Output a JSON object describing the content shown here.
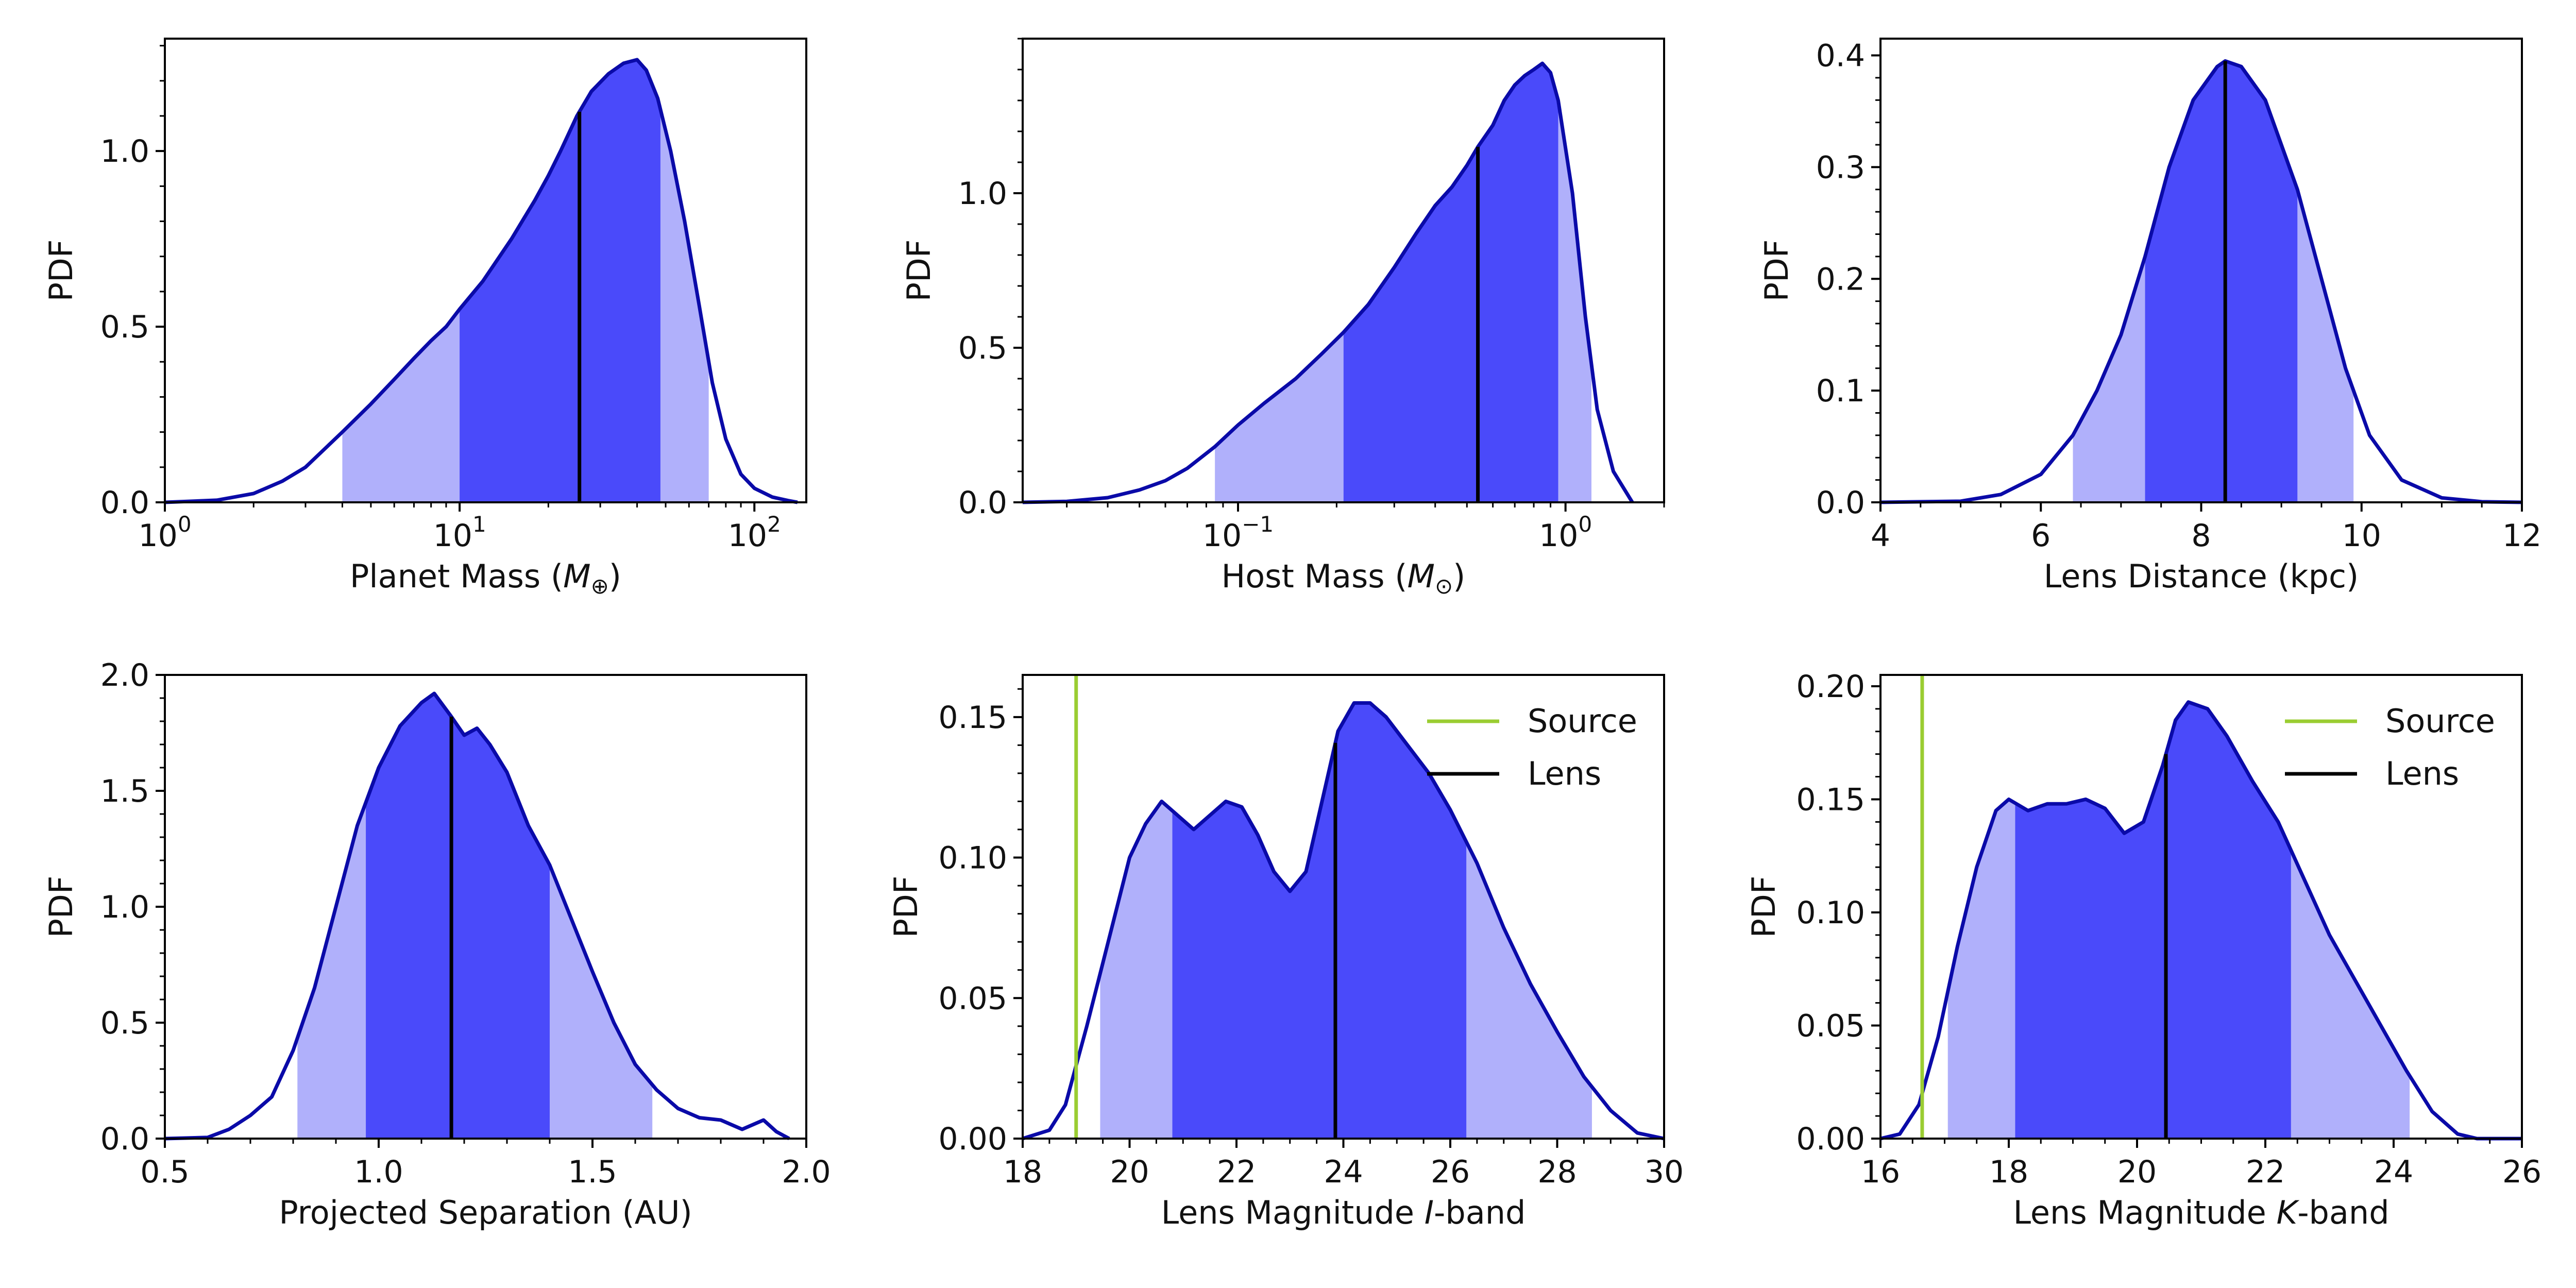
{
  "colors": {
    "outer": "#b0b0fb",
    "inner": "#4a4afa",
    "curve": "#0a0aa8",
    "median": "#000000",
    "source": "#9acd32",
    "lens": "#000000"
  },
  "chart_data": [
    {
      "id": "planet-mass",
      "type": "area",
      "xscale": "log",
      "xlim": [
        1,
        150
      ],
      "ylim": [
        0,
        1.32
      ],
      "xticks": [
        {
          "value": 1,
          "base": "10",
          "exp": "0"
        },
        {
          "value": 10,
          "base": "10",
          "exp": "1"
        },
        {
          "value": 100,
          "base": "10",
          "exp": "2"
        }
      ],
      "yticks": [
        {
          "value": 0,
          "label": "0.0"
        },
        {
          "value": 0.5,
          "label": "0.5"
        },
        {
          "value": 1.0,
          "label": "1.0"
        }
      ],
      "yminor_step": 0.1,
      "xlabel": {
        "main": "Planet Mass (",
        "sym": "M",
        "sub": "⊕",
        "end": ")"
      },
      "ylabel": "PDF",
      "curve": [
        [
          1,
          0.0
        ],
        [
          1.5,
          0.006
        ],
        [
          2,
          0.025
        ],
        [
          2.5,
          0.06
        ],
        [
          3,
          0.1
        ],
        [
          4,
          0.2
        ],
        [
          5,
          0.28
        ],
        [
          6,
          0.35
        ],
        [
          7,
          0.41
        ],
        [
          8,
          0.46
        ],
        [
          9,
          0.5
        ],
        [
          10,
          0.55
        ],
        [
          12,
          0.63
        ],
        [
          15,
          0.75
        ],
        [
          18,
          0.86
        ],
        [
          20,
          0.93
        ],
        [
          22,
          1.0
        ],
        [
          25,
          1.1
        ],
        [
          28,
          1.17
        ],
        [
          32,
          1.22
        ],
        [
          36,
          1.25
        ],
        [
          40,
          1.26
        ],
        [
          43,
          1.23
        ],
        [
          47,
          1.15
        ],
        [
          52,
          1.0
        ],
        [
          58,
          0.8
        ],
        [
          65,
          0.56
        ],
        [
          72,
          0.34
        ],
        [
          80,
          0.18
        ],
        [
          90,
          0.08
        ],
        [
          100,
          0.04
        ],
        [
          115,
          0.015
        ],
        [
          130,
          0.005
        ],
        [
          140,
          0.0
        ]
      ],
      "ci_outer": [
        4,
        70
      ],
      "ci_inner": [
        10,
        48
      ],
      "median": 25.5,
      "markers": []
    },
    {
      "id": "host-mass",
      "type": "area",
      "xscale": "log",
      "xlim": [
        0.022,
        2.0
      ],
      "ylim": [
        0,
        1.5
      ],
      "xticks": [
        {
          "value": 0.1,
          "base": "10",
          "exp": "−1"
        },
        {
          "value": 1,
          "base": "10",
          "exp": "0"
        }
      ],
      "yticks": [
        {
          "value": 0,
          "label": "0.0"
        },
        {
          "value": 0.5,
          "label": "0.5"
        },
        {
          "value": 1.0,
          "label": "1.0"
        }
      ],
      "yminor_step": 0.1,
      "xlabel": {
        "main": "Host Mass (",
        "sym": "M",
        "sub": "⊙",
        "end": ")"
      },
      "ylabel": "PDF",
      "curve": [
        [
          0.022,
          0.0
        ],
        [
          0.03,
          0.003
        ],
        [
          0.04,
          0.015
        ],
        [
          0.05,
          0.04
        ],
        [
          0.06,
          0.07
        ],
        [
          0.07,
          0.11
        ],
        [
          0.085,
          0.18
        ],
        [
          0.1,
          0.25
        ],
        [
          0.12,
          0.32
        ],
        [
          0.15,
          0.4
        ],
        [
          0.18,
          0.48
        ],
        [
          0.21,
          0.55
        ],
        [
          0.25,
          0.64
        ],
        [
          0.3,
          0.76
        ],
        [
          0.35,
          0.87
        ],
        [
          0.4,
          0.96
        ],
        [
          0.45,
          1.02
        ],
        [
          0.5,
          1.09
        ],
        [
          0.54,
          1.15
        ],
        [
          0.6,
          1.22
        ],
        [
          0.65,
          1.3
        ],
        [
          0.7,
          1.35
        ],
        [
          0.75,
          1.38
        ],
        [
          0.8,
          1.4
        ],
        [
          0.85,
          1.42
        ],
        [
          0.9,
          1.39
        ],
        [
          0.95,
          1.3
        ],
        [
          1.05,
          1.0
        ],
        [
          1.15,
          0.6
        ],
        [
          1.25,
          0.3
        ],
        [
          1.4,
          0.1
        ],
        [
          1.6,
          0.0
        ]
      ],
      "ci_outer": [
        0.085,
        1.2
      ],
      "ci_inner": [
        0.21,
        0.95
      ],
      "median": 0.54,
      "markers": []
    },
    {
      "id": "lens-distance",
      "type": "area",
      "xscale": "linear",
      "xlim": [
        4,
        12
      ],
      "ylim": [
        0,
        0.415
      ],
      "xticks": [
        {
          "value": 4,
          "label": "4"
        },
        {
          "value": 6,
          "label": "6"
        },
        {
          "value": 8,
          "label": "8"
        },
        {
          "value": 10,
          "label": "10"
        },
        {
          "value": 12,
          "label": "12"
        }
      ],
      "xminor_step": 0.5,
      "yticks": [
        {
          "value": 0,
          "label": "0.0"
        },
        {
          "value": 0.1,
          "label": "0.1"
        },
        {
          "value": 0.2,
          "label": "0.2"
        },
        {
          "value": 0.3,
          "label": "0.3"
        },
        {
          "value": 0.4,
          "label": "0.4"
        }
      ],
      "yminor_step": 0.02,
      "xlabel": {
        "main": "Lens Distance (kpc)"
      },
      "ylabel": "PDF",
      "curve": [
        [
          4,
          0.0
        ],
        [
          5,
          0.001
        ],
        [
          5.5,
          0.007
        ],
        [
          6,
          0.025
        ],
        [
          6.4,
          0.06
        ],
        [
          6.7,
          0.1
        ],
        [
          7,
          0.15
        ],
        [
          7.3,
          0.22
        ],
        [
          7.6,
          0.3
        ],
        [
          7.9,
          0.36
        ],
        [
          8.2,
          0.39
        ],
        [
          8.3,
          0.395
        ],
        [
          8.5,
          0.39
        ],
        [
          8.8,
          0.36
        ],
        [
          9.2,
          0.28
        ],
        [
          9.5,
          0.2
        ],
        [
          9.8,
          0.12
        ],
        [
          10.1,
          0.06
        ],
        [
          10.5,
          0.02
        ],
        [
          11,
          0.004
        ],
        [
          11.5,
          0.0005
        ],
        [
          12,
          0.0
        ]
      ],
      "ci_outer": [
        6.4,
        9.9
      ],
      "ci_inner": [
        7.3,
        9.2
      ],
      "median": 8.3,
      "markers": []
    },
    {
      "id": "projected-separation",
      "type": "area",
      "xscale": "linear",
      "xlim": [
        0.5,
        2.0
      ],
      "ylim": [
        0,
        2.0
      ],
      "xticks": [
        {
          "value": 0.5,
          "label": "0.5"
        },
        {
          "value": 1.0,
          "label": "1.0"
        },
        {
          "value": 1.5,
          "label": "1.5"
        },
        {
          "value": 2.0,
          "label": "2.0"
        }
      ],
      "xminor_step": 0.1,
      "yticks": [
        {
          "value": 0,
          "label": "0.0"
        },
        {
          "value": 0.5,
          "label": "0.5"
        },
        {
          "value": 1.0,
          "label": "1.0"
        },
        {
          "value": 1.5,
          "label": "1.5"
        },
        {
          "value": 2.0,
          "label": "2.0"
        }
      ],
      "yminor_step": 0.1,
      "xlabel": {
        "main": "Projected Separation (AU)"
      },
      "ylabel": "PDF",
      "curve": [
        [
          0.5,
          0.0
        ],
        [
          0.6,
          0.005
        ],
        [
          0.65,
          0.04
        ],
        [
          0.7,
          0.1
        ],
        [
          0.75,
          0.18
        ],
        [
          0.8,
          0.38
        ],
        [
          0.85,
          0.65
        ],
        [
          0.9,
          1.0
        ],
        [
          0.95,
          1.35
        ],
        [
          1.0,
          1.6
        ],
        [
          1.05,
          1.78
        ],
        [
          1.1,
          1.88
        ],
        [
          1.13,
          1.92
        ],
        [
          1.17,
          1.82
        ],
        [
          1.2,
          1.74
        ],
        [
          1.23,
          1.77
        ],
        [
          1.26,
          1.7
        ],
        [
          1.3,
          1.58
        ],
        [
          1.35,
          1.35
        ],
        [
          1.4,
          1.18
        ],
        [
          1.45,
          0.95
        ],
        [
          1.5,
          0.72
        ],
        [
          1.55,
          0.5
        ],
        [
          1.6,
          0.32
        ],
        [
          1.65,
          0.21
        ],
        [
          1.7,
          0.13
        ],
        [
          1.75,
          0.09
        ],
        [
          1.8,
          0.08
        ],
        [
          1.85,
          0.04
        ],
        [
          1.9,
          0.08
        ],
        [
          1.93,
          0.03
        ],
        [
          1.96,
          0.0
        ]
      ],
      "ci_outer": [
        0.81,
        1.64
      ],
      "ci_inner": [
        0.97,
        1.4
      ],
      "median": 1.17,
      "markers": []
    },
    {
      "id": "lens-mag-i",
      "type": "area",
      "xscale": "linear",
      "xlim": [
        18,
        30
      ],
      "ylim": [
        0,
        0.165
      ],
      "xticks": [
        {
          "value": 18,
          "label": "18"
        },
        {
          "value": 20,
          "label": "20"
        },
        {
          "value": 22,
          "label": "22"
        },
        {
          "value": 24,
          "label": "24"
        },
        {
          "value": 26,
          "label": "26"
        },
        {
          "value": 28,
          "label": "28"
        },
        {
          "value": 30,
          "label": "30"
        }
      ],
      "xminor_step": 0.5,
      "yticks": [
        {
          "value": 0,
          "label": "0.00"
        },
        {
          "value": 0.05,
          "label": "0.05"
        },
        {
          "value": 0.1,
          "label": "0.10"
        },
        {
          "value": 0.15,
          "label": "0.15"
        }
      ],
      "yminor_step": 0.01,
      "xlabel": {
        "main": "Lens Magnitude ",
        "ital": "I",
        "end": "-band"
      },
      "ylabel": "PDF",
      "curve": [
        [
          18,
          0.0
        ],
        [
          18.5,
          0.003
        ],
        [
          18.8,
          0.012
        ],
        [
          19.2,
          0.04
        ],
        [
          19.6,
          0.07
        ],
        [
          20,
          0.1
        ],
        [
          20.3,
          0.112
        ],
        [
          20.6,
          0.12
        ],
        [
          20.9,
          0.115
        ],
        [
          21.2,
          0.11
        ],
        [
          21.5,
          0.115
        ],
        [
          21.8,
          0.12
        ],
        [
          22.1,
          0.118
        ],
        [
          22.4,
          0.108
        ],
        [
          22.7,
          0.095
        ],
        [
          23,
          0.088
        ],
        [
          23.3,
          0.095
        ],
        [
          23.6,
          0.12
        ],
        [
          23.9,
          0.145
        ],
        [
          24.2,
          0.155
        ],
        [
          24.5,
          0.155
        ],
        [
          24.8,
          0.15
        ],
        [
          25.2,
          0.14
        ],
        [
          25.6,
          0.13
        ],
        [
          26,
          0.117
        ],
        [
          26.5,
          0.098
        ],
        [
          27,
          0.075
        ],
        [
          27.5,
          0.055
        ],
        [
          28,
          0.038
        ],
        [
          28.5,
          0.022
        ],
        [
          29,
          0.01
        ],
        [
          29.5,
          0.002
        ],
        [
          30,
          0.0
        ]
      ],
      "ci_outer": [
        19.45,
        28.65
      ],
      "ci_inner": [
        20.8,
        26.3
      ],
      "median": 23.85,
      "markers": [
        {
          "name": "Source",
          "x": 19.0,
          "color": "#9acd32"
        }
      ],
      "legend": [
        {
          "label": "Source",
          "color": "#9acd32"
        },
        {
          "label": "Lens",
          "color": "#000000"
        }
      ]
    },
    {
      "id": "lens-mag-k",
      "type": "area",
      "xscale": "linear",
      "xlim": [
        16,
        26
      ],
      "ylim": [
        0,
        0.205
      ],
      "xticks": [
        {
          "value": 16,
          "label": "16"
        },
        {
          "value": 18,
          "label": "18"
        },
        {
          "value": 20,
          "label": "20"
        },
        {
          "value": 22,
          "label": "22"
        },
        {
          "value": 24,
          "label": "24"
        },
        {
          "value": 26,
          "label": "26"
        }
      ],
      "xminor_step": 0.5,
      "yticks": [
        {
          "value": 0,
          "label": "0.00"
        },
        {
          "value": 0.05,
          "label": "0.05"
        },
        {
          "value": 0.1,
          "label": "0.10"
        },
        {
          "value": 0.15,
          "label": "0.15"
        },
        {
          "value": 0.2,
          "label": "0.20"
        }
      ],
      "yminor_step": 0.01,
      "xlabel": {
        "main": "Lens Magnitude ",
        "ital": "K",
        "end": "-band"
      },
      "ylabel": "PDF",
      "curve": [
        [
          16,
          0.0
        ],
        [
          16.3,
          0.002
        ],
        [
          16.6,
          0.015
        ],
        [
          16.9,
          0.045
        ],
        [
          17.2,
          0.085
        ],
        [
          17.5,
          0.12
        ],
        [
          17.8,
          0.145
        ],
        [
          18.0,
          0.15
        ],
        [
          18.3,
          0.145
        ],
        [
          18.6,
          0.148
        ],
        [
          18.9,
          0.148
        ],
        [
          19.2,
          0.15
        ],
        [
          19.5,
          0.146
        ],
        [
          19.8,
          0.135
        ],
        [
          20.1,
          0.14
        ],
        [
          20.4,
          0.165
        ],
        [
          20.6,
          0.185
        ],
        [
          20.8,
          0.193
        ],
        [
          21.1,
          0.19
        ],
        [
          21.4,
          0.178
        ],
        [
          21.8,
          0.158
        ],
        [
          22.2,
          0.14
        ],
        [
          22.6,
          0.115
        ],
        [
          23.0,
          0.09
        ],
        [
          23.4,
          0.07
        ],
        [
          23.8,
          0.05
        ],
        [
          24.2,
          0.03
        ],
        [
          24.6,
          0.012
        ],
        [
          25.0,
          0.002
        ],
        [
          25.3,
          0.0
        ],
        [
          26,
          0.0
        ]
      ],
      "ci_outer": [
        17.05,
        24.25
      ],
      "ci_inner": [
        18.1,
        22.4
      ],
      "median": 20.45,
      "markers": [
        {
          "name": "Source",
          "x": 16.65,
          "color": "#9acd32"
        }
      ],
      "legend": [
        {
          "label": "Source",
          "color": "#9acd32"
        },
        {
          "label": "Lens",
          "color": "#000000"
        }
      ]
    }
  ]
}
